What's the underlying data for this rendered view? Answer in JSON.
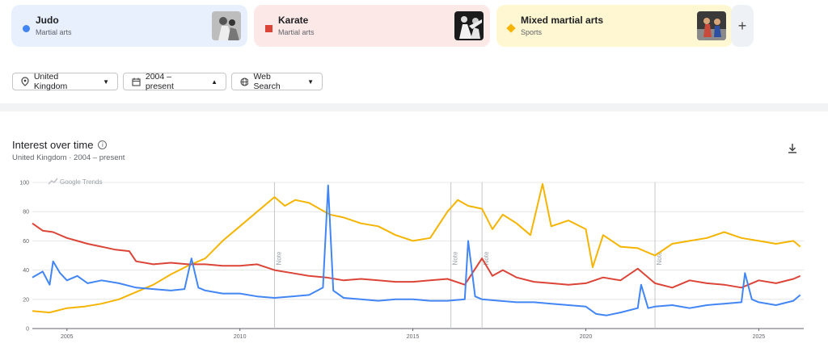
{
  "terms": [
    {
      "name": "Judo",
      "category": "Martial arts",
      "color": "#4285f4",
      "bg": "#e8f0fe",
      "shape": "circle"
    },
    {
      "name": "Karate",
      "category": "Martial arts",
      "color": "#db4437",
      "bg": "#fde8e8",
      "shape": "square"
    },
    {
      "name": "Mixed martial arts",
      "category": "Sports",
      "color": "#f4b400",
      "bg": "#fef7d1",
      "shape": "diamond"
    }
  ],
  "add_label": "+",
  "filters": {
    "region": "United Kingdom",
    "time": "2004 – present",
    "property": "Web Search"
  },
  "section": {
    "title": "Interest over time",
    "subtitle": "United Kingdom · 2004 – present"
  },
  "watermark": "Google Trends",
  "notes": [
    "Note",
    "Note",
    "Note",
    "Note"
  ],
  "chart_data": {
    "type": "line",
    "xlim": [
      2004,
      2026.3
    ],
    "ylim": [
      0,
      100
    ],
    "yticks": [
      0,
      20,
      40,
      60,
      80,
      100
    ],
    "xticks": [
      2005,
      2010,
      2015,
      2020,
      2025
    ],
    "notes_at": [
      2011.0,
      2016.1,
      2017.0,
      2022.0
    ],
    "series": [
      {
        "name": "Judo",
        "color": "#4285f4",
        "points": [
          [
            2004.0,
            35
          ],
          [
            2004.3,
            39
          ],
          [
            2004.5,
            30
          ],
          [
            2004.6,
            46
          ],
          [
            2004.8,
            38
          ],
          [
            2005.0,
            33
          ],
          [
            2005.3,
            36
          ],
          [
            2005.6,
            31
          ],
          [
            2006.0,
            33
          ],
          [
            2006.5,
            31
          ],
          [
            2007.0,
            28
          ],
          [
            2007.5,
            27
          ],
          [
            2008.0,
            26
          ],
          [
            2008.4,
            27
          ],
          [
            2008.6,
            48
          ],
          [
            2008.8,
            28
          ],
          [
            2009.0,
            26
          ],
          [
            2009.5,
            24
          ],
          [
            2010.0,
            24
          ],
          [
            2010.5,
            22
          ],
          [
            2011.0,
            21
          ],
          [
            2011.5,
            22
          ],
          [
            2012.0,
            23
          ],
          [
            2012.4,
            28
          ],
          [
            2012.55,
            98
          ],
          [
            2012.7,
            26
          ],
          [
            2013.0,
            21
          ],
          [
            2013.5,
            20
          ],
          [
            2014.0,
            19
          ],
          [
            2014.5,
            20
          ],
          [
            2015.0,
            20
          ],
          [
            2015.5,
            19
          ],
          [
            2016.0,
            19
          ],
          [
            2016.5,
            20
          ],
          [
            2016.6,
            60
          ],
          [
            2016.8,
            22
          ],
          [
            2017.0,
            20
          ],
          [
            2017.5,
            19
          ],
          [
            2018.0,
            18
          ],
          [
            2018.5,
            18
          ],
          [
            2019.0,
            17
          ],
          [
            2019.5,
            16
          ],
          [
            2020.0,
            15
          ],
          [
            2020.3,
            10
          ],
          [
            2020.6,
            9
          ],
          [
            2021.0,
            11
          ],
          [
            2021.5,
            14
          ],
          [
            2021.6,
            30
          ],
          [
            2021.8,
            14
          ],
          [
            2022.0,
            15
          ],
          [
            2022.5,
            16
          ],
          [
            2023.0,
            14
          ],
          [
            2023.5,
            16
          ],
          [
            2024.0,
            17
          ],
          [
            2024.5,
            18
          ],
          [
            2024.6,
            38
          ],
          [
            2024.8,
            20
          ],
          [
            2025.0,
            18
          ],
          [
            2025.5,
            16
          ],
          [
            2026.0,
            19
          ],
          [
            2026.2,
            23
          ]
        ]
      },
      {
        "name": "Karate",
        "color": "#db4437",
        "points": [
          [
            2004.0,
            72
          ],
          [
            2004.3,
            67
          ],
          [
            2004.6,
            66
          ],
          [
            2005.0,
            62
          ],
          [
            2005.3,
            60
          ],
          [
            2005.6,
            58
          ],
          [
            2006.0,
            56
          ],
          [
            2006.4,
            54
          ],
          [
            2006.8,
            53
          ],
          [
            2007.0,
            46
          ],
          [
            2007.5,
            44
          ],
          [
            2008.0,
            45
          ],
          [
            2008.5,
            44
          ],
          [
            2009.0,
            44
          ],
          [
            2009.5,
            43
          ],
          [
            2010.0,
            43
          ],
          [
            2010.5,
            44
          ],
          [
            2011.0,
            40
          ],
          [
            2011.5,
            38
          ],
          [
            2012.0,
            36
          ],
          [
            2012.5,
            35
          ],
          [
            2013.0,
            33
          ],
          [
            2013.5,
            34
          ],
          [
            2014.0,
            33
          ],
          [
            2014.5,
            32
          ],
          [
            2015.0,
            32
          ],
          [
            2015.5,
            33
          ],
          [
            2016.0,
            34
          ],
          [
            2016.5,
            30
          ],
          [
            2017.0,
            48
          ],
          [
            2017.3,
            36
          ],
          [
            2017.6,
            40
          ],
          [
            2018.0,
            35
          ],
          [
            2018.5,
            32
          ],
          [
            2019.0,
            31
          ],
          [
            2019.5,
            30
          ],
          [
            2020.0,
            31
          ],
          [
            2020.5,
            35
          ],
          [
            2021.0,
            33
          ],
          [
            2021.5,
            41
          ],
          [
            2022.0,
            31
          ],
          [
            2022.5,
            28
          ],
          [
            2023.0,
            33
          ],
          [
            2023.5,
            31
          ],
          [
            2024.0,
            30
          ],
          [
            2024.5,
            28
          ],
          [
            2025.0,
            33
          ],
          [
            2025.5,
            31
          ],
          [
            2026.0,
            34
          ],
          [
            2026.2,
            36
          ]
        ]
      },
      {
        "name": "Mixed martial arts",
        "color": "#f4b400",
        "points": [
          [
            2004.0,
            12
          ],
          [
            2004.5,
            11
          ],
          [
            2005.0,
            14
          ],
          [
            2005.5,
            15
          ],
          [
            2006.0,
            17
          ],
          [
            2006.5,
            20
          ],
          [
            2007.0,
            25
          ],
          [
            2007.5,
            30
          ],
          [
            2008.0,
            37
          ],
          [
            2008.5,
            43
          ],
          [
            2009.0,
            48
          ],
          [
            2009.5,
            60
          ],
          [
            2010.0,
            70
          ],
          [
            2010.5,
            80
          ],
          [
            2011.0,
            90
          ],
          [
            2011.3,
            84
          ],
          [
            2011.6,
            88
          ],
          [
            2012.0,
            86
          ],
          [
            2012.3,
            82
          ],
          [
            2012.6,
            78
          ],
          [
            2013.0,
            76
          ],
          [
            2013.5,
            72
          ],
          [
            2014.0,
            70
          ],
          [
            2014.5,
            64
          ],
          [
            2015.0,
            60
          ],
          [
            2015.5,
            62
          ],
          [
            2016.0,
            80
          ],
          [
            2016.3,
            88
          ],
          [
            2016.6,
            84
          ],
          [
            2017.0,
            82
          ],
          [
            2017.3,
            68
          ],
          [
            2017.6,
            78
          ],
          [
            2018.0,
            72
          ],
          [
            2018.4,
            64
          ],
          [
            2018.75,
            99
          ],
          [
            2019.0,
            70
          ],
          [
            2019.5,
            74
          ],
          [
            2020.0,
            68
          ],
          [
            2020.2,
            42
          ],
          [
            2020.5,
            64
          ],
          [
            2021.0,
            56
          ],
          [
            2021.5,
            55
          ],
          [
            2022.0,
            50
          ],
          [
            2022.5,
            58
          ],
          [
            2023.0,
            60
          ],
          [
            2023.5,
            62
          ],
          [
            2024.0,
            66
          ],
          [
            2024.5,
            62
          ],
          [
            2025.0,
            60
          ],
          [
            2025.5,
            58
          ],
          [
            2026.0,
            60
          ],
          [
            2026.2,
            56
          ]
        ]
      }
    ]
  }
}
